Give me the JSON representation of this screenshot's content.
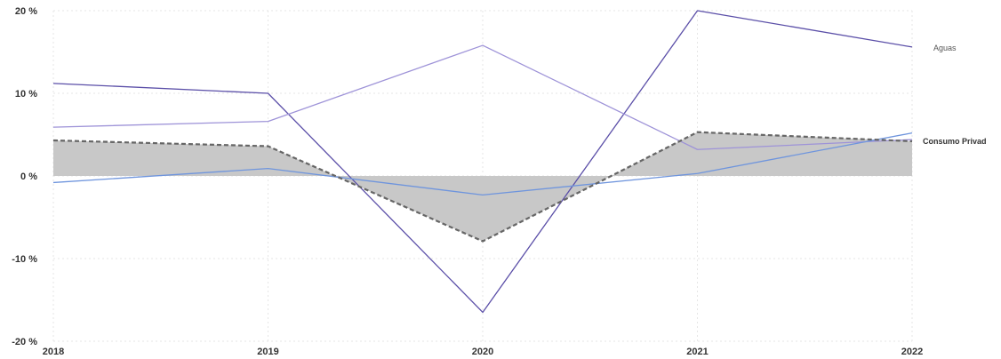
{
  "chart_data": {
    "type": "line",
    "x": [
      "2018",
      "2019",
      "2020",
      "2021",
      "2022"
    ],
    "y_tick_labels": [
      "20 %",
      "10 %",
      "0 %",
      "-10 %",
      "-20 %"
    ],
    "y_ticks": [
      20,
      10,
      0,
      -10,
      -20
    ],
    "ylim": [
      -20,
      20
    ],
    "grid": true,
    "series": [
      {
        "name": "Aguas",
        "values": [
          11.2,
          10.0,
          -16.5,
          20.0,
          15.6
        ],
        "color": "#5b4fa8",
        "style": "solid"
      },
      {
        "values": [
          5.9,
          6.6,
          15.8,
          3.2,
          4.4
        ],
        "color": "#9e93d8",
        "style": "solid"
      },
      {
        "values": [
          -0.8,
          0.9,
          -2.3,
          0.3,
          5.2
        ],
        "color": "#6f95dd",
        "style": "solid"
      },
      {
        "name": "Consumo Privad",
        "values": [
          4.3,
          3.6,
          -7.9,
          5.3,
          4.2
        ],
        "color": "#666666",
        "style": "dashed",
        "fill": "#c8c8c8"
      }
    ]
  }
}
